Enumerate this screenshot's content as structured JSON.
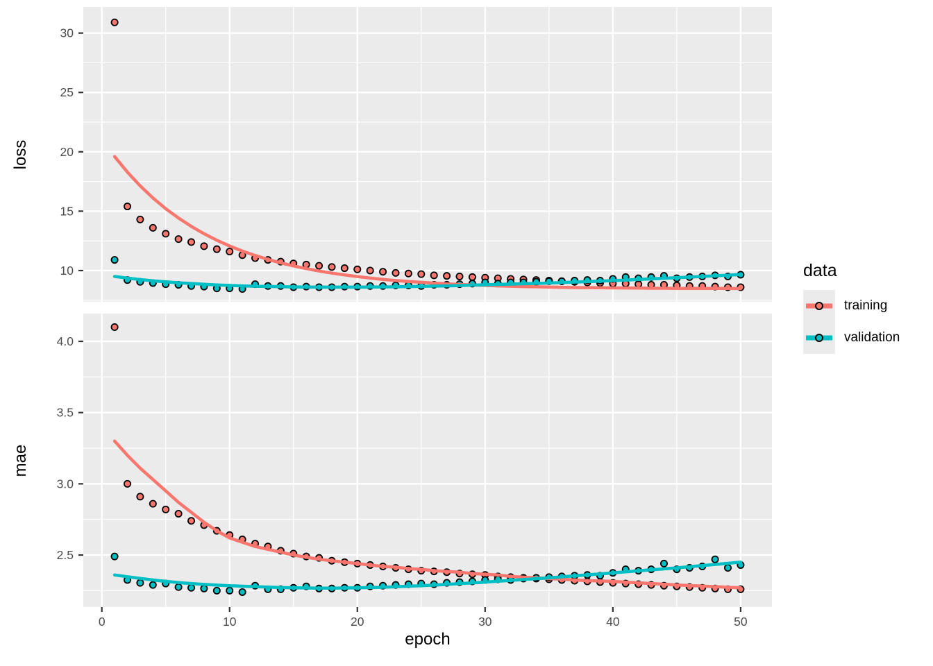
{
  "figure": {
    "background": "#FFFFFF",
    "panel_background": "#EBEBEB",
    "grid_color": "#FFFFFF",
    "tick_label_color": "#4D4D4D",
    "tick_mark_color": "#333333",
    "axis_title_color": "#000000",
    "x_axis_title": "epoch"
  },
  "legend": {
    "title": "data",
    "key_background": "#EBEBEB",
    "items": [
      {
        "label": "training",
        "color": "#F8766D"
      },
      {
        "label": "validation",
        "color": "#00BFC4"
      }
    ]
  },
  "chart_data": [
    {
      "type": "scatter",
      "facet": "loss",
      "ylabel": "loss",
      "xlabel": "epoch",
      "legend_position": "right",
      "grid": true,
      "x_range": [
        -1.45,
        52.45
      ],
      "y_range": [
        7.37,
        32.2
      ],
      "x_ticks": [
        0,
        10,
        20,
        30,
        40,
        50
      ],
      "x_tick_labels": [
        "0",
        "10",
        "20",
        "30",
        "40",
        "50"
      ],
      "y_ticks": [
        10,
        15,
        20,
        25,
        30
      ],
      "y_tick_labels": [
        "10",
        "15",
        "20",
        "25",
        "30"
      ],
      "epochs": [
        1,
        2,
        3,
        4,
        5,
        6,
        7,
        8,
        9,
        10,
        11,
        12,
        13,
        14,
        15,
        16,
        17,
        18,
        19,
        20,
        21,
        22,
        23,
        24,
        25,
        26,
        27,
        28,
        29,
        30,
        31,
        32,
        33,
        34,
        35,
        36,
        37,
        38,
        39,
        40,
        41,
        42,
        43,
        44,
        45,
        46,
        47,
        48,
        49,
        50
      ],
      "series": [
        {
          "name": "training",
          "color": "#F8766D",
          "points": [
            30.9,
            15.4,
            14.3,
            13.6,
            13.1,
            12.65,
            12.4,
            12.05,
            11.8,
            11.6,
            11.3,
            11.05,
            10.9,
            10.75,
            10.6,
            10.5,
            10.4,
            10.3,
            10.2,
            10.1,
            10.0,
            9.9,
            9.8,
            9.75,
            9.7,
            9.6,
            9.55,
            9.5,
            9.45,
            9.4,
            9.35,
            9.3,
            9.25,
            9.2,
            9.15,
            9.1,
            9.05,
            9.0,
            8.95,
            8.9,
            8.9,
            8.85,
            8.8,
            8.8,
            8.75,
            8.7,
            8.7,
            8.65,
            8.6,
            8.6
          ],
          "smooth": [
            19.6,
            18.29,
            17.13,
            16.11,
            15.21,
            14.42,
            13.72,
            13.1,
            12.55,
            12.07,
            11.64,
            11.27,
            10.94,
            10.65,
            10.39,
            10.16,
            9.96,
            9.78,
            9.63,
            9.49,
            9.37,
            9.26,
            9.16,
            9.08,
            9.01,
            8.94,
            8.88,
            8.83,
            8.79,
            8.75,
            8.71,
            8.68,
            8.65,
            8.63,
            8.61,
            8.59,
            8.57,
            8.56,
            8.55,
            8.54,
            8.53,
            8.52,
            8.51,
            8.51,
            8.5,
            8.5,
            8.49,
            8.49,
            8.49,
            8.48
          ]
        },
        {
          "name": "validation",
          "color": "#00BFC4",
          "points": [
            10.9,
            9.2,
            9.05,
            8.95,
            8.85,
            8.8,
            8.7,
            8.65,
            8.5,
            8.5,
            8.45,
            8.85,
            8.7,
            8.7,
            8.6,
            8.65,
            8.6,
            8.6,
            8.65,
            8.65,
            8.7,
            8.7,
            8.75,
            8.75,
            8.7,
            8.8,
            8.8,
            8.85,
            8.9,
            9.0,
            8.9,
            9.0,
            9.0,
            9.05,
            9.1,
            9.1,
            9.15,
            9.2,
            9.15,
            9.3,
            9.45,
            9.35,
            9.45,
            9.55,
            9.35,
            9.45,
            9.5,
            9.6,
            9.5,
            9.65
          ],
          "smooth": [
            9.5,
            9.36,
            9.24,
            9.14,
            9.05,
            8.97,
            8.9,
            8.84,
            8.79,
            8.75,
            8.71,
            8.68,
            8.66,
            8.64,
            8.62,
            8.61,
            8.6,
            8.6,
            8.6,
            8.6,
            8.61,
            8.62,
            8.63,
            8.65,
            8.67,
            8.69,
            8.71,
            8.74,
            8.77,
            8.8,
            8.83,
            8.86,
            8.89,
            8.92,
            8.95,
            8.99,
            9.03,
            9.07,
            9.11,
            9.15,
            9.2,
            9.25,
            9.3,
            9.35,
            9.4,
            9.45,
            9.5,
            9.56,
            9.61,
            9.67
          ]
        }
      ]
    },
    {
      "type": "scatter",
      "facet": "mae",
      "ylabel": "mae",
      "xlabel": "epoch",
      "legend_position": "right",
      "grid": true,
      "x_range": [
        -1.45,
        52.45
      ],
      "y_range": [
        2.135,
        4.195
      ],
      "x_ticks": [
        0,
        10,
        20,
        30,
        40,
        50
      ],
      "x_tick_labels": [
        "0",
        "10",
        "20",
        "30",
        "40",
        "50"
      ],
      "y_ticks": [
        2.5,
        3.0,
        3.5,
        4.0
      ],
      "y_tick_labels": [
        "2.5",
        "3.0",
        "3.5",
        "4.0"
      ],
      "epochs": [
        1,
        2,
        3,
        4,
        5,
        6,
        7,
        8,
        9,
        10,
        11,
        12,
        13,
        14,
        15,
        16,
        17,
        18,
        19,
        20,
        21,
        22,
        23,
        24,
        25,
        26,
        27,
        28,
        29,
        30,
        31,
        32,
        33,
        34,
        35,
        36,
        37,
        38,
        39,
        40,
        41,
        42,
        43,
        44,
        45,
        46,
        47,
        48,
        49,
        50
      ],
      "series": [
        {
          "name": "training",
          "color": "#F8766D",
          "points": [
            4.1,
            3.0,
            2.91,
            2.86,
            2.82,
            2.79,
            2.74,
            2.71,
            2.67,
            2.64,
            2.61,
            2.58,
            2.56,
            2.53,
            2.51,
            2.49,
            2.48,
            2.46,
            2.45,
            2.44,
            2.43,
            2.42,
            2.41,
            2.4,
            2.39,
            2.385,
            2.38,
            2.37,
            2.365,
            2.36,
            2.35,
            2.345,
            2.34,
            2.335,
            2.33,
            2.325,
            2.32,
            2.315,
            2.31,
            2.305,
            2.3,
            2.295,
            2.29,
            2.285,
            2.28,
            2.275,
            2.27,
            2.265,
            2.26,
            2.26
          ],
          "smooth": [
            3.3,
            3.2,
            3.11,
            3.03,
            2.95,
            2.87,
            2.8,
            2.73,
            2.67,
            2.62,
            2.59,
            2.56,
            2.54,
            2.52,
            2.5,
            2.485,
            2.47,
            2.46,
            2.45,
            2.44,
            2.43,
            2.42,
            2.415,
            2.405,
            2.4,
            2.39,
            2.385,
            2.38,
            2.37,
            2.365,
            2.36,
            2.35,
            2.345,
            2.34,
            2.335,
            2.33,
            2.325,
            2.32,
            2.318,
            2.315,
            2.31,
            2.305,
            2.3,
            2.295,
            2.29,
            2.286,
            2.282,
            2.278,
            2.274,
            2.27
          ]
        },
        {
          "name": "validation",
          "color": "#00BFC4",
          "points": [
            2.49,
            2.325,
            2.305,
            2.29,
            2.3,
            2.275,
            2.27,
            2.265,
            2.25,
            2.25,
            2.24,
            2.285,
            2.26,
            2.26,
            2.27,
            2.28,
            2.265,
            2.265,
            2.27,
            2.27,
            2.28,
            2.285,
            2.29,
            2.295,
            2.3,
            2.295,
            2.305,
            2.31,
            2.315,
            2.325,
            2.33,
            2.325,
            2.335,
            2.34,
            2.345,
            2.35,
            2.355,
            2.36,
            2.355,
            2.375,
            2.4,
            2.39,
            2.4,
            2.44,
            2.4,
            2.41,
            2.42,
            2.47,
            2.41,
            2.43
          ],
          "smooth": [
            2.36,
            2.348,
            2.336,
            2.325,
            2.315,
            2.307,
            2.3,
            2.294,
            2.289,
            2.285,
            2.281,
            2.278,
            2.275,
            2.272,
            2.27,
            2.269,
            2.268,
            2.268,
            2.269,
            2.27,
            2.272,
            2.274,
            2.277,
            2.281,
            2.285,
            2.289,
            2.294,
            2.299,
            2.304,
            2.31,
            2.316,
            2.322,
            2.328,
            2.334,
            2.34,
            2.347,
            2.354,
            2.361,
            2.368,
            2.375,
            2.382,
            2.389,
            2.396,
            2.403,
            2.41,
            2.418,
            2.426,
            2.434,
            2.442,
            2.45
          ]
        }
      ]
    }
  ]
}
